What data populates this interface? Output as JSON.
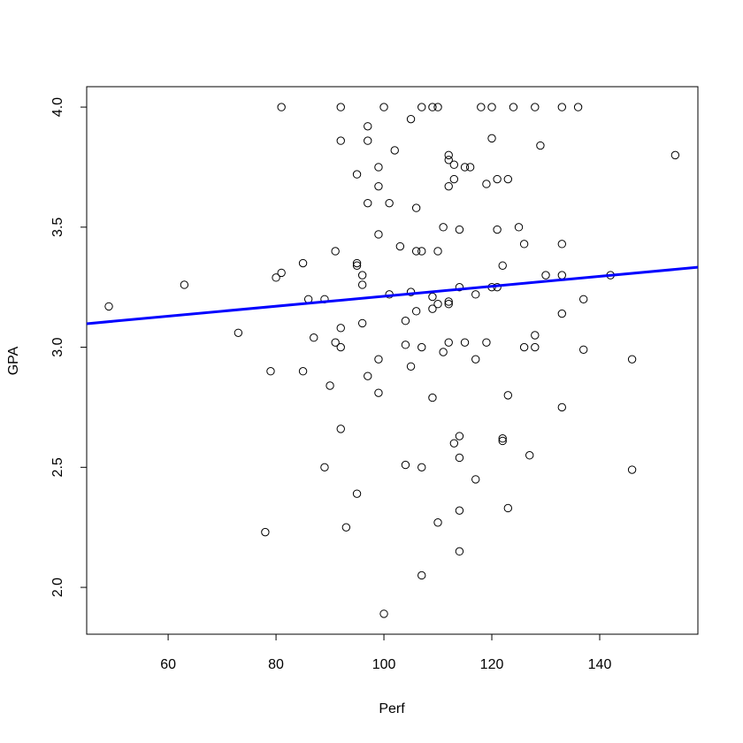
{
  "chart_data": {
    "type": "scatter",
    "xlabel": "Perf",
    "ylabel": "GPA",
    "xlim": [
      44.9,
      158.2
    ],
    "ylim": [
      1.805,
      4.085
    ],
    "xticks": [
      60,
      80,
      100,
      120,
      140
    ],
    "yticks": [
      {
        "value": 2,
        "label": "2.0"
      },
      2.5,
      {
        "value": 3,
        "label": "3.0"
      },
      3.5,
      {
        "value": 4,
        "label": "4.0"
      }
    ],
    "color": "#000000",
    "x": [
      49,
      63,
      73,
      78,
      79,
      80,
      81,
      81,
      85,
      85,
      86,
      87,
      89,
      89,
      90,
      91,
      91,
      92,
      92,
      92,
      92,
      92,
      93,
      95,
      95,
      95,
      95,
      96,
      96,
      96,
      97,
      97,
      97,
      97,
      99,
      99,
      99,
      99,
      99,
      100,
      100,
      101,
      101,
      102,
      103,
      104,
      104,
      104,
      105,
      105,
      105,
      106,
      106,
      106,
      107,
      107,
      107,
      107,
      107,
      109,
      109,
      109,
      109,
      110,
      110,
      110,
      110,
      111,
      111,
      112,
      112,
      112,
      112,
      112,
      112,
      113,
      113,
      113,
      114,
      114,
      114,
      114,
      114,
      114,
      115,
      115,
      116,
      117,
      117,
      117,
      118,
      119,
      119,
      120,
      120,
      120,
      121,
      121,
      121,
      122,
      122,
      122,
      123,
      123,
      123,
      124,
      125,
      126,
      126,
      127,
      128,
      128,
      128,
      129,
      130,
      133,
      133,
      133,
      133,
      133,
      136,
      137,
      137,
      142,
      146,
      146,
      154
    ],
    "values": [
      3.17,
      3.26,
      3.06,
      2.23,
      2.9,
      3.29,
      4.0,
      3.31,
      3.35,
      2.9,
      3.2,
      3.04,
      3.2,
      2.5,
      2.84,
      3.4,
      3.02,
      4.0,
      3.86,
      3.08,
      3.0,
      2.66,
      2.25,
      3.72,
      3.35,
      3.34,
      2.39,
      3.3,
      3.26,
      3.1,
      3.92,
      3.86,
      3.6,
      2.88,
      3.75,
      3.67,
      3.47,
      2.95,
      2.81,
      4.0,
      1.89,
      3.6,
      3.22,
      3.82,
      3.42,
      3.11,
      3.01,
      2.51,
      3.95,
      3.23,
      2.92,
      3.58,
      3.4,
      3.15,
      4.0,
      3.4,
      3.0,
      2.5,
      2.05,
      4.0,
      3.21,
      3.16,
      2.79,
      4.0,
      3.4,
      3.18,
      2.27,
      3.5,
      2.98,
      3.8,
      3.78,
      3.67,
      3.19,
      3.18,
      3.02,
      3.76,
      3.7,
      2.6,
      3.49,
      3.25,
      2.63,
      2.54,
      2.32,
      2.15,
      3.75,
      3.02,
      3.75,
      3.22,
      2.95,
      2.45,
      4.0,
      3.68,
      3.02,
      4.0,
      3.87,
      3.25,
      3.7,
      3.49,
      3.25,
      3.34,
      2.62,
      2.61,
      3.7,
      2.8,
      2.33,
      4.0,
      3.5,
      3.43,
      3.0,
      2.55,
      4.0,
      3.05,
      3.0,
      3.84,
      3.3,
      4.0,
      3.43,
      3.3,
      3.14,
      2.75,
      4.0,
      3.2,
      2.99,
      3.3,
      2.95,
      2.49,
      3.8
    ],
    "fit": {
      "x": [
        44.9,
        158.2
      ],
      "y": [
        3.098,
        3.333
      ],
      "color": "#0000ff"
    }
  }
}
